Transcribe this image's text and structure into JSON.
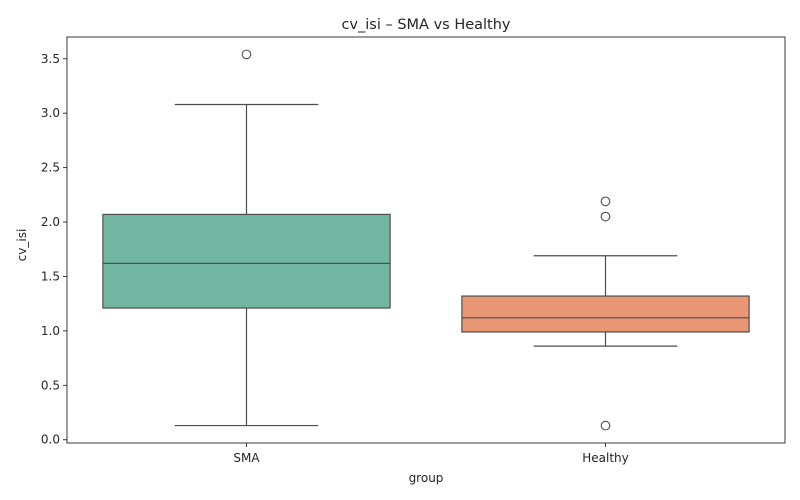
{
  "chart_data": {
    "type": "box",
    "title": "cv_isi – SMA vs Healthy",
    "xlabel": "group",
    "ylabel": "cv_isi",
    "categories": [
      "SMA",
      "Healthy"
    ],
    "ylim": [
      -0.03,
      3.7
    ],
    "yticks": [
      0.0,
      0.5,
      1.0,
      1.5,
      2.0,
      2.5,
      3.0,
      3.5
    ],
    "ytick_labels": [
      "0.0",
      "0.5",
      "1.0",
      "1.5",
      "2.0",
      "2.5",
      "3.0",
      "3.5"
    ],
    "grid": false,
    "boxes": [
      {
        "category": "SMA",
        "color": "#72b6a1",
        "whisker_low": 0.13,
        "q1": 1.21,
        "median": 1.62,
        "q3": 2.07,
        "whisker_high": 3.08,
        "outliers": [
          3.54
        ]
      },
      {
        "category": "Healthy",
        "color": "#e99675",
        "whisker_low": 0.86,
        "q1": 0.99,
        "median": 1.12,
        "q3": 1.32,
        "whisker_high": 1.69,
        "outliers": [
          2.19,
          2.05,
          0.13
        ]
      }
    ],
    "line_color": "#4d4d4d"
  }
}
